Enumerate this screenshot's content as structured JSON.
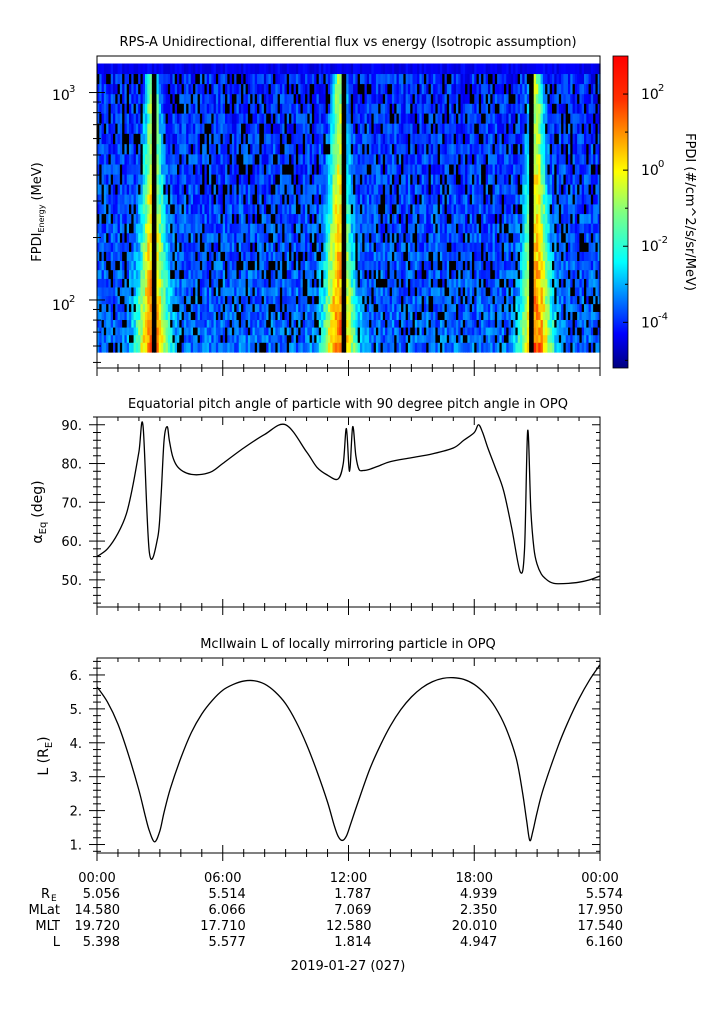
{
  "chart_data": [
    {
      "type": "heatmap",
      "title": "RPS-A Unidirectional, differential flux vs energy (Isotropic assumption)",
      "ylabel": "FPDI",
      "ylabel_sub": "Energy",
      "ylabel_unit": "(MeV)",
      "yscale": "log",
      "ylim": [
        47,
        1500
      ],
      "yticks": [
        {
          "base": "10",
          "exp": "3",
          "value": 1000
        },
        {
          "base": "10",
          "exp": "2",
          "value": 100
        }
      ],
      "energy_channels_mev": [
        60,
        65,
        71,
        77,
        84,
        92,
        100,
        110,
        121,
        133,
        147,
        163,
        180,
        200,
        222,
        247,
        275,
        306,
        342,
        382,
        427,
        478,
        535,
        600,
        672,
        752,
        840,
        935,
        1040,
        1170,
        1300
      ],
      "high_flux_bands_hours": [
        2.6,
        11.5,
        20.9
      ],
      "no_data_stripes_hours": [
        2.7,
        11.75,
        20.7
      ],
      "colorbar": {
        "label": "FPDI (#/cm^2/s/sr/MeV)",
        "scale": "log",
        "range": [
          -5.2,
          3.0
        ],
        "ticks": [
          {
            "base": "10",
            "exp": "2",
            "value": 2
          },
          {
            "base": "10",
            "exp": "0",
            "value": 0
          },
          {
            "base": "10",
            "exp": "-2",
            "value": -2
          },
          {
            "base": "10",
            "exp": "-4",
            "value": -4
          }
        ],
        "colors": [
          "#00007f",
          "#0000ff",
          "#0080ff",
          "#00ffff",
          "#80ff80",
          "#ffff00",
          "#ff8000",
          "#ff0000",
          "#7f0000"
        ]
      }
    },
    {
      "type": "line",
      "title": "Equatorial pitch angle of particle with 90 degree pitch angle in OPQ",
      "ylabel": "α",
      "ylabel_sub": "Eq",
      "ylabel_unit": "(deg)",
      "ylim": [
        43,
        92
      ],
      "yticks": [
        50,
        60,
        70,
        80,
        90
      ],
      "ytick_labels": [
        "50.",
        "60.",
        "70.",
        "80.",
        "90."
      ],
      "x_hours": [
        0,
        0.5,
        1,
        1.4,
        1.7,
        2.0,
        2.2,
        2.5,
        2.9,
        3.05,
        3.2,
        3.35,
        3.45,
        3.6,
        3.8,
        4.1,
        4.5,
        5.0,
        5.5,
        6.0,
        7.0,
        8.0,
        9.0,
        10.0,
        10.5,
        11.0,
        11.5,
        11.75,
        11.9,
        12.05,
        12.2,
        12.35,
        12.5,
        12.7,
        13.0,
        13.5,
        14.0,
        15.0,
        16.0,
        17.0,
        17.5,
        18.0,
        18.2,
        18.4,
        18.65,
        19.0,
        19.4,
        19.8,
        20.2,
        20.4,
        20.55,
        20.7,
        20.85,
        21.0,
        21.2,
        21.4,
        21.6,
        21.8,
        22.0,
        22.5,
        23.0,
        23.5,
        24.0
      ],
      "y_deg": [
        56,
        58,
        62,
        67,
        74,
        83,
        89.5,
        57,
        61,
        71,
        86,
        89.5,
        86,
        82,
        79.5,
        78,
        77.2,
        77.2,
        78,
        80,
        84,
        87.5,
        90,
        83,
        79,
        77,
        76,
        80,
        89,
        78,
        89.5,
        82,
        78.5,
        78.2,
        78.5,
        79.5,
        80.5,
        81.5,
        82.5,
        84,
        86,
        88,
        90,
        88,
        84,
        79,
        73,
        63,
        52,
        58,
        88.5,
        68,
        58,
        54,
        51.5,
        50.3,
        49.5,
        49.1,
        49,
        49.1,
        49.4,
        50,
        51
      ]
    },
    {
      "type": "line",
      "title": "McIlwain L of locally mirroring particle in OPQ",
      "ylabel": "L (R",
      "ylabel_sub": "E",
      "ylabel_close": ")",
      "ylim": [
        0.75,
        6.5
      ],
      "yticks": [
        1,
        2,
        3,
        4,
        5,
        6
      ],
      "ytick_labels": [
        "1.",
        "2.",
        "3.",
        "4.",
        "5.",
        "6."
      ],
      "minima_hours": [
        2.75,
        11.7,
        20.65
      ],
      "x_hours": [
        0,
        0.5,
        1,
        1.5,
        2,
        2.3,
        2.5,
        2.75,
        3.0,
        3.2,
        3.5,
        4,
        4.5,
        5,
        5.5,
        6,
        6.5,
        7,
        7.5,
        8,
        8.5,
        9,
        9.5,
        10,
        10.5,
        11,
        11.3,
        11.5,
        11.7,
        11.9,
        12.1,
        12.4,
        13,
        13.5,
        14,
        14.5,
        15,
        15.5,
        16,
        16.5,
        17,
        17.5,
        18,
        18.5,
        19,
        19.5,
        20,
        20.3,
        20.5,
        20.65,
        20.8,
        21.0,
        21.3,
        22,
        22.5,
        23,
        23.5,
        24
      ],
      "y_l": [
        5.65,
        5.2,
        4.55,
        3.65,
        2.6,
        1.85,
        1.4,
        1.08,
        1.4,
        1.95,
        2.65,
        3.55,
        4.3,
        4.85,
        5.25,
        5.55,
        5.72,
        5.82,
        5.83,
        5.73,
        5.5,
        5.15,
        4.62,
        3.95,
        3.15,
        2.25,
        1.6,
        1.25,
        1.12,
        1.25,
        1.6,
        2.15,
        3.2,
        3.9,
        4.5,
        4.98,
        5.35,
        5.62,
        5.8,
        5.9,
        5.92,
        5.87,
        5.72,
        5.45,
        5.05,
        4.45,
        3.55,
        2.55,
        1.7,
        1.12,
        1.4,
        1.95,
        2.65,
        3.9,
        4.65,
        5.3,
        5.85,
        6.3
      ]
    }
  ],
  "time_axis": {
    "tick_labels": [
      "00:00",
      "06:00",
      "12:00",
      "18:00",
      "00:00"
    ],
    "tick_hours": [
      0,
      6,
      12,
      18,
      24
    ],
    "range_hours": [
      0,
      24
    ]
  },
  "ephemeris": {
    "rows": [
      {
        "label": "R",
        "label_sub": "E",
        "values": [
          "5.056",
          "5.514",
          "1.787",
          "4.939",
          "5.574"
        ]
      },
      {
        "label": "MLat",
        "label_sub": "",
        "values": [
          "14.580",
          "6.066",
          "7.069",
          "2.350",
          "17.950"
        ]
      },
      {
        "label": "MLT",
        "label_sub": "",
        "values": [
          "19.720",
          "17.710",
          "12.580",
          "20.010",
          "17.540"
        ]
      },
      {
        "label": "L",
        "label_sub": "",
        "values": [
          "5.398",
          "5.577",
          "1.814",
          "4.947",
          "6.160"
        ]
      }
    ]
  },
  "date_label": "2019-01-27 (027)"
}
